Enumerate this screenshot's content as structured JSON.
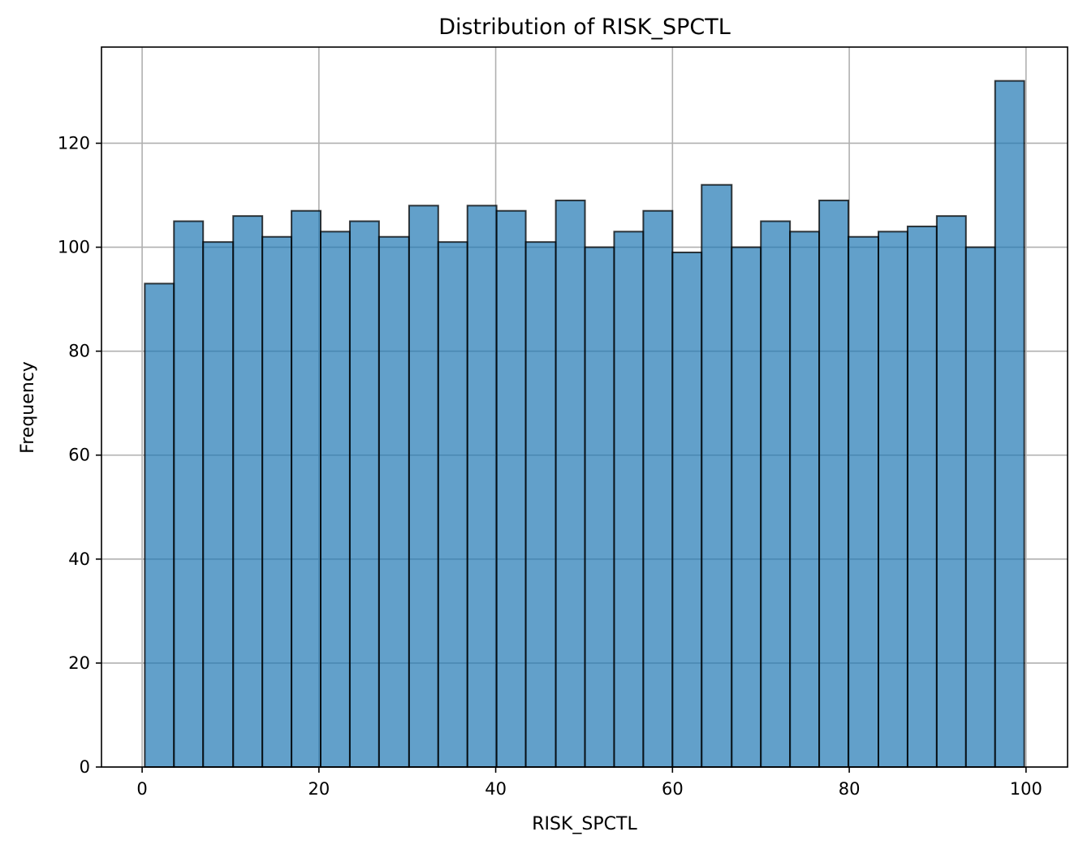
{
  "chart_data": {
    "type": "bar",
    "title": "Distribution of RISK_SPCTL",
    "xlabel": "RISK_SPCTL",
    "ylabel": "Frequency",
    "xlim": [
      -4.6,
      104.7
    ],
    "ylim": [
      0,
      138.5
    ],
    "xticks": [
      0,
      20,
      40,
      60,
      80,
      100
    ],
    "yticks": [
      0,
      20,
      40,
      60,
      80,
      100,
      120
    ],
    "grid": true,
    "bar_color": "#1f77b4",
    "bar_opacity": 0.7,
    "edge_color": "#000000",
    "bins": [
      {
        "x0": 0.3,
        "x1": 3.6,
        "value": 93
      },
      {
        "x0": 3.6,
        "x1": 6.9,
        "value": 105
      },
      {
        "x0": 6.9,
        "x1": 10.3,
        "value": 101
      },
      {
        "x0": 10.3,
        "x1": 13.6,
        "value": 106
      },
      {
        "x0": 13.6,
        "x1": 16.9,
        "value": 102
      },
      {
        "x0": 16.9,
        "x1": 20.2,
        "value": 107
      },
      {
        "x0": 20.2,
        "x1": 23.5,
        "value": 103
      },
      {
        "x0": 23.5,
        "x1": 26.8,
        "value": 105
      },
      {
        "x0": 26.8,
        "x1": 30.2,
        "value": 102
      },
      {
        "x0": 30.2,
        "x1": 33.5,
        "value": 108
      },
      {
        "x0": 33.5,
        "x1": 36.8,
        "value": 101
      },
      {
        "x0": 36.8,
        "x1": 40.1,
        "value": 108
      },
      {
        "x0": 40.1,
        "x1": 43.4,
        "value": 107
      },
      {
        "x0": 43.4,
        "x1": 46.8,
        "value": 101
      },
      {
        "x0": 46.8,
        "x1": 50.1,
        "value": 109
      },
      {
        "x0": 50.1,
        "x1": 53.4,
        "value": 100
      },
      {
        "x0": 53.4,
        "x1": 56.7,
        "value": 103
      },
      {
        "x0": 56.7,
        "x1": 60.0,
        "value": 107
      },
      {
        "x0": 60.0,
        "x1": 63.3,
        "value": 99
      },
      {
        "x0": 63.3,
        "x1": 66.7,
        "value": 112
      },
      {
        "x0": 66.7,
        "x1": 70.0,
        "value": 100
      },
      {
        "x0": 70.0,
        "x1": 73.3,
        "value": 105
      },
      {
        "x0": 73.3,
        "x1": 76.6,
        "value": 103
      },
      {
        "x0": 76.6,
        "x1": 79.9,
        "value": 109
      },
      {
        "x0": 79.9,
        "x1": 83.3,
        "value": 102
      },
      {
        "x0": 83.3,
        "x1": 86.6,
        "value": 103
      },
      {
        "x0": 86.6,
        "x1": 89.9,
        "value": 104
      },
      {
        "x0": 89.9,
        "x1": 93.2,
        "value": 106
      },
      {
        "x0": 93.2,
        "x1": 96.5,
        "value": 100
      },
      {
        "x0": 96.5,
        "x1": 99.8,
        "value": 132
      }
    ]
  }
}
